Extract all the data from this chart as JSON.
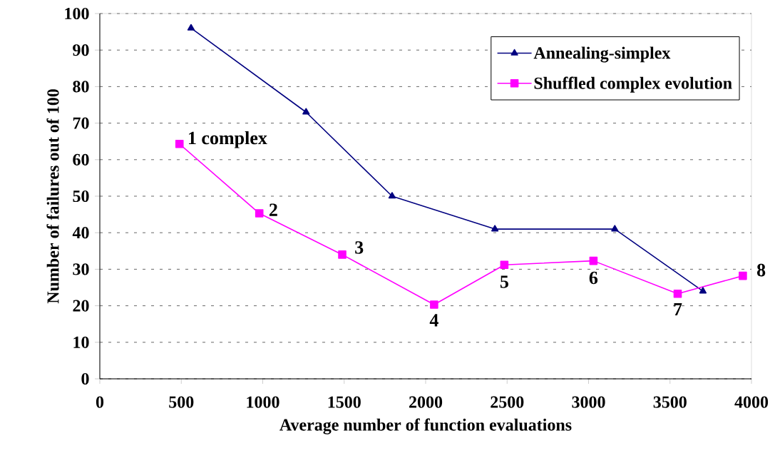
{
  "chart_data": {
    "type": "line",
    "xlabel": "Average number of function evaluations",
    "ylabel": "Number of failures out of 100",
    "xlim": [
      0,
      4000
    ],
    "xticks": [
      0,
      500,
      1000,
      1500,
      2000,
      2500,
      3000,
      3500,
      4000
    ],
    "ylim": [
      0,
      100
    ],
    "yticks": [
      0,
      10,
      20,
      30,
      40,
      50,
      60,
      70,
      80,
      90,
      100
    ],
    "grid": "y",
    "legend": "top right",
    "line_style": "solid",
    "series": [
      {
        "name": "Annealing-simplex",
        "color": "#000080",
        "marker": "triangle",
        "x": [
          560,
          1266,
          1794,
          2425,
          3161,
          3702
        ],
        "values": [
          96,
          73,
          50,
          41,
          41,
          24
        ]
      },
      {
        "name": "Shuffled complex evolution",
        "color": "#ff00ff",
        "marker": "square",
        "x": [
          489,
          979,
          1488,
          2052,
          2483,
          3030,
          3547,
          3947
        ],
        "values": [
          64.3,
          45.3,
          34,
          20.3,
          31.2,
          32.3,
          23.3,
          28.2
        ]
      }
    ],
    "annotations": [
      {
        "text": "1 complex",
        "x": 489,
        "y": 64.3
      },
      {
        "text": "2",
        "x": 979,
        "y": 45.3
      },
      {
        "text": "3",
        "x": 1488,
        "y": 34
      },
      {
        "text": "4",
        "x": 2052,
        "y": 20.3
      },
      {
        "text": "5",
        "x": 2483,
        "y": 31.2
      },
      {
        "text": "6",
        "x": 3030,
        "y": 32.3
      },
      {
        "text": "7",
        "x": 3547,
        "y": 23.3
      },
      {
        "text": "8",
        "x": 3947,
        "y": 28.2
      }
    ]
  }
}
